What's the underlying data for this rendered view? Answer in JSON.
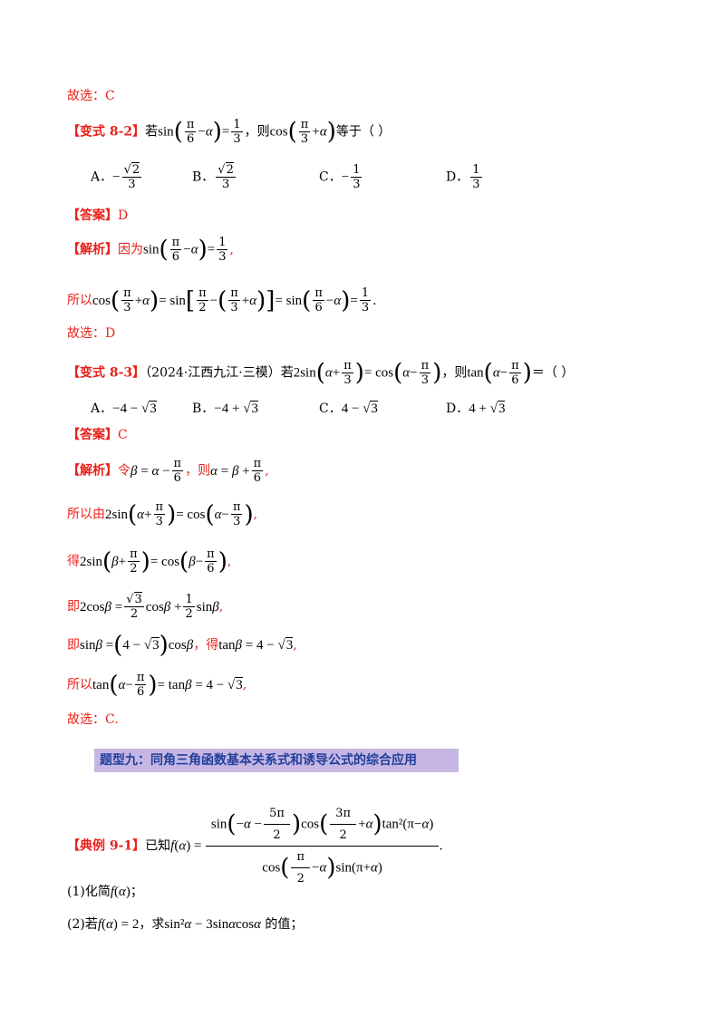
{
  "lines": {
    "l1": "故选：C",
    "v82_tag": "【变式 8-2】",
    "v82_text": "若",
    "v82_sin": "sin",
    "v82_eq": "=",
    "v82_then": "，则",
    "v82_cos": "cos",
    "v82_tail": "等于（    ）",
    "ans1_tag": "【答案】",
    "ans1_val": "D",
    "ana1_tag": "【解析】",
    "ana1_text": "因为",
    "so1": "所以",
    "l_d": "故选：D",
    "v83_tag": "【变式 8-3】",
    "v83_src": "（2024·江西九江·三模）若",
    "v83_then": "，则",
    "v83_tail": "＝（    ）",
    "ans2_tag": "【答案】",
    "ans2_val": "C",
    "ana2_tag": "【解析】",
    "ana2_text": "令",
    "ana2_then": "，则",
    "so2": "所以由",
    "de": "得",
    "ji1": "即",
    "ji2": "即",
    "de2": "，得",
    "so3": "所以",
    "l_c": "故选：C.",
    "heading": "题型九：同角三角函数基本关系式和诱导公式的综合应用",
    "ex_tag": "【典例 9-1】",
    "ex_text": "已知",
    "q1": "(1)化简",
    "q2a": "(2)若",
    "q2b": "，求",
    "q2c": "的值；"
  },
  "options1": {
    "a": "A．",
    "b": "B．",
    "c": "C．",
    "d": "D．"
  },
  "options2": {
    "a": "A．",
    "a_val": "−4 − ",
    "b": "B．",
    "b_val": "−4 + ",
    "c": "C．",
    "c_val": "4 − ",
    "d": "D．",
    "d_val": "4 + "
  }
}
